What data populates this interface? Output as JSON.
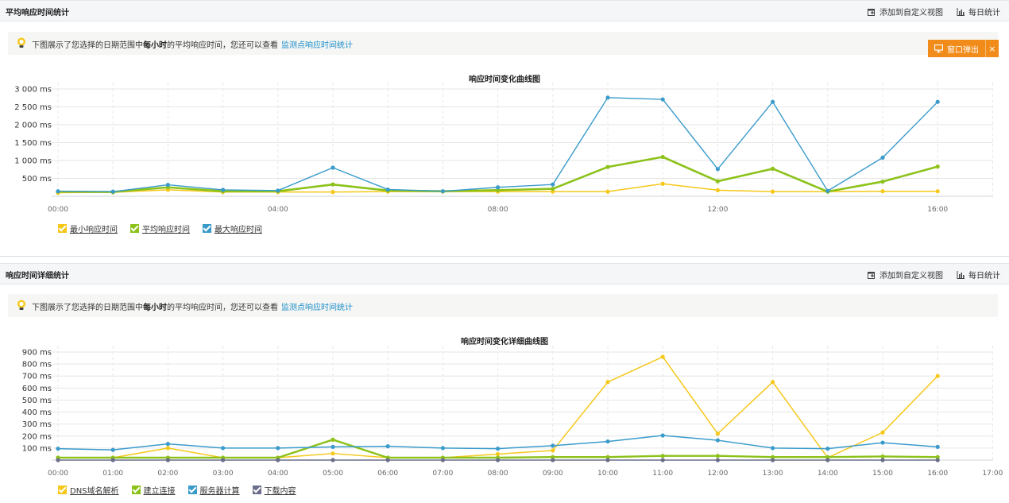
{
  "section1": {
    "title": "平均响应时间统计",
    "add_view": "添加到自定义视图",
    "daily": "每日统计",
    "info_prefix": "下图展示了您选择的日期范围中",
    "info_bold": "每小时",
    "info_suffix": "的平均响应时间，您还可以查看",
    "info_link": "监测点响应时间统计",
    "popup_label": "窗口弹出",
    "popup_close": "×"
  },
  "section2": {
    "title": "响应时间详细统计",
    "add_view": "添加到自定义视图",
    "daily": "每日统计",
    "info_prefix": "下图展示了您选择的日期范围中",
    "info_bold": "每小时",
    "info_suffix": "的平均响应时间，您还可以查看",
    "info_link": "监测点响应时间统计"
  },
  "chart_data": [
    {
      "type": "line",
      "title": "响应时间变化曲线图",
      "x": [
        "00:00",
        "01:00",
        "02:00",
        "03:00",
        "04:00",
        "05:00",
        "06:00",
        "07:00",
        "08:00",
        "09:00",
        "10:00",
        "11:00",
        "12:00",
        "13:00",
        "14:00",
        "15:00",
        "16:00"
      ],
      "x_tick_labels": [
        "00:00",
        "04:00",
        "08:00",
        "12:00",
        "16:00"
      ],
      "y_tick_labels": [
        "500 ms",
        "1 000 ms",
        "1 500 ms",
        "2 000 ms",
        "2 500 ms",
        "3 000 ms"
      ],
      "ylim": [
        0,
        3000
      ],
      "unit": "ms",
      "grid": true,
      "legend_position": "bottom-left",
      "series": [
        {
          "name": "最小响应时间",
          "color": "#f5c81a",
          "values": [
            100,
            110,
            180,
            120,
            120,
            120,
            130,
            130,
            130,
            130,
            130,
            350,
            170,
            130,
            130,
            140,
            140
          ]
        },
        {
          "name": "平均响应时间",
          "color": "#8cc21a",
          "values": [
            130,
            120,
            250,
            140,
            140,
            330,
            160,
            140,
            170,
            210,
            820,
            1100,
            420,
            770,
            130,
            410,
            830
          ]
        },
        {
          "name": "最大响应时间",
          "color": "#3a9bcb",
          "values": [
            140,
            130,
            320,
            180,
            160,
            800,
            190,
            140,
            250,
            330,
            2760,
            2710,
            760,
            2640,
            150,
            1080,
            2640
          ]
        }
      ]
    },
    {
      "type": "line",
      "title": "响应时间变化详细曲线图",
      "x": [
        "00:00",
        "01:00",
        "02:00",
        "03:00",
        "04:00",
        "05:00",
        "06:00",
        "07:00",
        "08:00",
        "09:00",
        "10:00",
        "11:00",
        "12:00",
        "13:00",
        "14:00",
        "15:00",
        "16:00"
      ],
      "x_tick_labels": [
        "00:00",
        "01:00",
        "02:00",
        "03:00",
        "04:00",
        "05:00",
        "06:00",
        "07:00",
        "08:00",
        "09:00",
        "10:00",
        "11:00",
        "12:00",
        "13:00",
        "14:00",
        "15:00",
        "16:00",
        "17:00"
      ],
      "y_tick_labels": [
        "100 ms",
        "200 ms",
        "300 ms",
        "400 ms",
        "500 ms",
        "600 ms",
        "700 ms",
        "800 ms",
        "900 ms"
      ],
      "ylim": [
        0,
        900
      ],
      "unit": "ms",
      "grid": true,
      "legend_position": "bottom-left",
      "series": [
        {
          "name": "DNS域名解析",
          "color": "#f5c81a",
          "values": [
            20,
            20,
            100,
            20,
            20,
            55,
            20,
            20,
            50,
            80,
            650,
            860,
            220,
            650,
            20,
            230,
            700
          ]
        },
        {
          "name": "建立连接",
          "color": "#8cc21a",
          "values": [
            20,
            20,
            20,
            20,
            20,
            170,
            20,
            20,
            20,
            25,
            25,
            35,
            35,
            25,
            25,
            30,
            25
          ]
        },
        {
          "name": "服务器计算",
          "color": "#3a9bcb",
          "values": [
            95,
            85,
            135,
            100,
            100,
            110,
            115,
            100,
            95,
            120,
            155,
            205,
            165,
            100,
            95,
            145,
            110
          ]
        },
        {
          "name": "下载内容",
          "color": "#6b6e8a",
          "values": [
            0,
            0,
            0,
            0,
            0,
            0,
            0,
            0,
            0,
            0,
            0,
            0,
            0,
            0,
            0,
            0,
            0
          ]
        }
      ]
    }
  ]
}
